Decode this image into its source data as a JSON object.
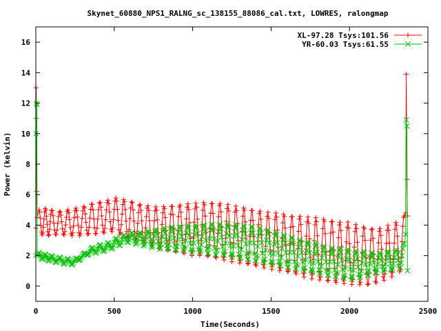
{
  "chart_data": {
    "type": "line",
    "title": "Skynet_60880_NPS1_RALNG_sc_138155_88086_cal.txt, LOWRES, ralongmap",
    "xlabel": "Time(Seconds)",
    "ylabel": "Power (kelvin)",
    "xlim": [
      0,
      2500
    ],
    "ylim": [
      -1,
      17
    ],
    "xticks": [
      0,
      500,
      1000,
      1500,
      2000,
      2500
    ],
    "yticks": [
      0,
      2,
      4,
      6,
      8,
      10,
      12,
      14,
      16
    ],
    "grid": false,
    "legend_position": "top-right",
    "series": [
      {
        "name": "XL-97.28 Tsys:101.56",
        "color": "#ff0000",
        "marker": "plus",
        "spikes_start": [
          [
            0,
            3.8
          ],
          [
            2,
            13.0
          ],
          [
            4,
            11.0
          ],
          [
            6,
            6.2
          ],
          [
            9,
            4.5
          ]
        ],
        "spikes_end": [
          [
            2358,
            4.8
          ],
          [
            2362,
            13.9
          ],
          [
            2366,
            7.0
          ],
          [
            2370,
            4.6
          ]
        ],
        "x": [
          20,
          60,
          100,
          150,
          200,
          250,
          300,
          350,
          400,
          450,
          500,
          550,
          600,
          650,
          700,
          750,
          800,
          850,
          900,
          950,
          1000,
          1050,
          1100,
          1150,
          1200,
          1250,
          1300,
          1350,
          1400,
          1450,
          1500,
          1550,
          1600,
          1650,
          1700,
          1750,
          1800,
          1850,
          1900,
          1950,
          2000,
          2050,
          2100,
          2150,
          2200,
          2250,
          2300,
          2350
        ],
        "high": [
          5.0,
          5.1,
          5.0,
          4.9,
          5.0,
          5.1,
          5.2,
          5.4,
          5.5,
          5.6,
          5.8,
          5.7,
          5.6,
          5.4,
          5.3,
          5.2,
          5.2,
          5.3,
          5.3,
          5.4,
          5.4,
          5.5,
          5.5,
          5.5,
          5.4,
          5.3,
          5.2,
          5.1,
          5.0,
          4.9,
          4.8,
          4.8,
          4.7,
          4.6,
          4.6,
          4.5,
          4.5,
          4.4,
          4.3,
          4.2,
          4.2,
          4.0,
          3.9,
          3.8,
          3.8,
          4.0,
          4.2,
          4.6
        ],
        "low": [
          3.4,
          3.3,
          3.3,
          3.4,
          3.3,
          3.3,
          3.3,
          3.4,
          3.4,
          3.5,
          3.6,
          3.3,
          3.1,
          3.0,
          2.8,
          2.6,
          2.4,
          2.3,
          2.2,
          2.1,
          2.0,
          2.0,
          1.9,
          1.8,
          1.7,
          1.6,
          1.5,
          1.4,
          1.3,
          1.2,
          1.1,
          1.0,
          0.9,
          0.8,
          0.6,
          0.5,
          0.4,
          0.3,
          0.2,
          0.2,
          0.1,
          0.1,
          0.0,
          0.1,
          0.3,
          0.5,
          0.8,
          1.1
        ]
      },
      {
        "name": "YR-60.03 Tsys:61.55",
        "color": "#00c000",
        "marker": "cross",
        "spikes_start": [
          [
            0,
            2.0
          ],
          [
            2,
            10.0
          ],
          [
            4,
            12.0
          ],
          [
            6,
            11.9
          ],
          [
            9,
            2.1
          ]
        ],
        "spikes_end": [
          [
            2358,
            3.4
          ],
          [
            2362,
            10.9
          ],
          [
            2366,
            10.5
          ],
          [
            2370,
            1.0
          ]
        ],
        "x": [
          20,
          60,
          100,
          150,
          200,
          250,
          300,
          350,
          400,
          450,
          500,
          550,
          600,
          650,
          700,
          750,
          800,
          850,
          900,
          950,
          1000,
          1050,
          1100,
          1150,
          1200,
          1250,
          1300,
          1350,
          1400,
          1450,
          1500,
          1550,
          1600,
          1650,
          1700,
          1750,
          1800,
          1850,
          1900,
          1950,
          2000,
          2050,
          2100,
          2150,
          2200,
          2250,
          2300,
          2350
        ],
        "high": [
          2.2,
          2.1,
          2.0,
          1.9,
          1.8,
          1.8,
          2.1,
          2.5,
          2.7,
          2.8,
          3.1,
          3.3,
          3.5,
          3.5,
          3.6,
          3.7,
          3.8,
          3.9,
          3.9,
          4.0,
          4.0,
          4.0,
          4.1,
          4.1,
          4.1,
          4.1,
          4.0,
          4.0,
          3.9,
          3.8,
          3.6,
          3.5,
          3.3,
          3.2,
          3.0,
          2.9,
          2.8,
          2.6,
          2.5,
          2.5,
          2.4,
          2.3,
          2.3,
          2.2,
          2.2,
          2.3,
          2.4,
          2.8
        ],
        "low": [
          1.8,
          1.7,
          1.6,
          1.5,
          1.4,
          1.4,
          1.9,
          2.1,
          2.2,
          2.3,
          2.5,
          2.7,
          2.9,
          2.7,
          2.6,
          2.5,
          2.4,
          2.4,
          2.3,
          2.3,
          2.2,
          2.2,
          2.1,
          2.0,
          2.0,
          1.9,
          1.8,
          1.7,
          1.6,
          1.5,
          1.4,
          1.3,
          1.2,
          1.1,
          1.0,
          0.9,
          0.8,
          0.7,
          0.6,
          0.5,
          0.4,
          0.5,
          0.6,
          0.8,
          0.9,
          1.0,
          1.1,
          1.2
        ]
      }
    ]
  }
}
